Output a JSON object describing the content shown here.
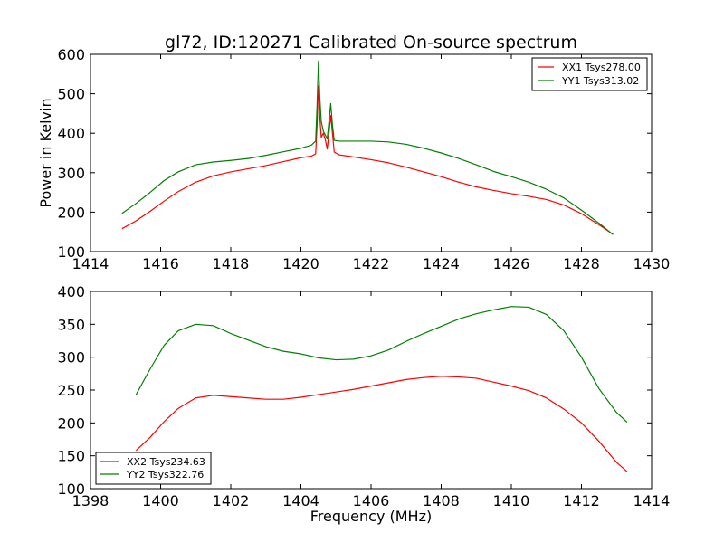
{
  "chart_data": [
    {
      "type": "line",
      "title": "gl72, ID:120271 Calibrated On-source spectrum",
      "xlabel": "",
      "ylabel": "Power in Kelvin",
      "xlim": [
        1414,
        1430
      ],
      "ylim": [
        100,
        600
      ],
      "xticks": [
        1414,
        1416,
        1418,
        1420,
        1422,
        1424,
        1426,
        1428,
        1430
      ],
      "yticks": [
        100,
        200,
        300,
        400,
        500,
        600
      ],
      "legend_position": "upper right",
      "series": [
        {
          "name": "XX1 Tsys278.00",
          "color": "#ff0000",
          "points": [
            [
              1414.9,
              158
            ],
            [
              1415.3,
              178
            ],
            [
              1415.7,
              202
            ],
            [
              1416.1,
              228
            ],
            [
              1416.5,
              252
            ],
            [
              1417.0,
              276
            ],
            [
              1417.5,
              292
            ],
            [
              1418.0,
              302
            ],
            [
              1418.5,
              310
            ],
            [
              1419.0,
              318
            ],
            [
              1419.5,
              328
            ],
            [
              1420.0,
              338
            ],
            [
              1420.3,
              342
            ],
            [
              1420.42,
              348
            ],
            [
              1420.46,
              420
            ],
            [
              1420.5,
              520
            ],
            [
              1420.54,
              440
            ],
            [
              1420.58,
              390
            ],
            [
              1420.64,
              400
            ],
            [
              1420.7,
              382
            ],
            [
              1420.75,
              360
            ],
            [
              1420.8,
              400
            ],
            [
              1420.85,
              445
            ],
            [
              1420.9,
              400
            ],
            [
              1420.95,
              352
            ],
            [
              1421.1,
              345
            ],
            [
              1421.5,
              340
            ],
            [
              1422.0,
              333
            ],
            [
              1422.5,
              325
            ],
            [
              1423.0,
              314
            ],
            [
              1423.5,
              302
            ],
            [
              1424.0,
              290
            ],
            [
              1424.5,
              276
            ],
            [
              1425.0,
              264
            ],
            [
              1425.5,
              255
            ],
            [
              1426.0,
              247
            ],
            [
              1426.5,
              240
            ],
            [
              1427.0,
              232
            ],
            [
              1427.5,
              218
            ],
            [
              1428.0,
              196
            ],
            [
              1428.5,
              168
            ],
            [
              1428.9,
              144
            ]
          ]
        },
        {
          "name": "YY1 Tsys313.02",
          "color": "#008000",
          "points": [
            [
              1414.9,
              197
            ],
            [
              1415.3,
              222
            ],
            [
              1415.7,
              250
            ],
            [
              1416.1,
              280
            ],
            [
              1416.5,
              302
            ],
            [
              1417.0,
              320
            ],
            [
              1417.5,
              327
            ],
            [
              1418.0,
              331
            ],
            [
              1418.5,
              336
            ],
            [
              1419.0,
              344
            ],
            [
              1419.5,
              353
            ],
            [
              1420.0,
              362
            ],
            [
              1420.3,
              370
            ],
            [
              1420.42,
              380
            ],
            [
              1420.46,
              470
            ],
            [
              1420.5,
              583
            ],
            [
              1420.54,
              490
            ],
            [
              1420.58,
              430
            ],
            [
              1420.64,
              405
            ],
            [
              1420.7,
              395
            ],
            [
              1420.75,
              385
            ],
            [
              1420.8,
              430
            ],
            [
              1420.85,
              475
            ],
            [
              1420.9,
              420
            ],
            [
              1420.95,
              382
            ],
            [
              1421.1,
              380
            ],
            [
              1421.5,
              380
            ],
            [
              1422.0,
              380
            ],
            [
              1422.5,
              378
            ],
            [
              1423.0,
              372
            ],
            [
              1423.5,
              362
            ],
            [
              1424.0,
              350
            ],
            [
              1424.5,
              336
            ],
            [
              1425.0,
              320
            ],
            [
              1425.5,
              303
            ],
            [
              1426.0,
              290
            ],
            [
              1426.5,
              276
            ],
            [
              1427.0,
              258
            ],
            [
              1427.5,
              236
            ],
            [
              1428.0,
              205
            ],
            [
              1428.5,
              172
            ],
            [
              1428.9,
              143
            ]
          ]
        }
      ]
    },
    {
      "type": "line",
      "title": "",
      "xlabel": "Frequency (MHz)",
      "ylabel": "",
      "xlim": [
        1398,
        1414
      ],
      "ylim": [
        100,
        400
      ],
      "xticks": [
        1398,
        1400,
        1402,
        1404,
        1406,
        1408,
        1410,
        1412,
        1414
      ],
      "yticks": [
        100,
        150,
        200,
        250,
        300,
        350,
        400
      ],
      "legend_position": "lower left",
      "series": [
        {
          "name": "XX2 Tsys234.63",
          "color": "#ff0000",
          "points": [
            [
              1399.3,
              158
            ],
            [
              1399.7,
              178
            ],
            [
              1400.1,
              202
            ],
            [
              1400.5,
              222
            ],
            [
              1401.0,
              238
            ],
            [
              1401.5,
              242
            ],
            [
              1402.0,
              240
            ],
            [
              1402.5,
              238
            ],
            [
              1403.0,
              236
            ],
            [
              1403.5,
              236
            ],
            [
              1404.0,
              239
            ],
            [
              1404.5,
              243
            ],
            [
              1405.0,
              247
            ],
            [
              1405.5,
              251
            ],
            [
              1406.0,
              256
            ],
            [
              1406.5,
              261
            ],
            [
              1407.0,
              266
            ],
            [
              1407.5,
              269
            ],
            [
              1408.0,
              271
            ],
            [
              1408.5,
              270
            ],
            [
              1409.0,
              268
            ],
            [
              1409.5,
              262
            ],
            [
              1410.0,
              256
            ],
            [
              1410.5,
              249
            ],
            [
              1411.0,
              238
            ],
            [
              1411.5,
              221
            ],
            [
              1412.0,
              200
            ],
            [
              1412.5,
              172
            ],
            [
              1413.0,
              140
            ],
            [
              1413.3,
              126
            ]
          ]
        },
        {
          "name": "YY2 Tsys322.76",
          "color": "#008000",
          "points": [
            [
              1399.3,
              243
            ],
            [
              1399.7,
              282
            ],
            [
              1400.1,
              318
            ],
            [
              1400.5,
              340
            ],
            [
              1401.0,
              350
            ],
            [
              1401.5,
              348
            ],
            [
              1402.0,
              336
            ],
            [
              1402.5,
              326
            ],
            [
              1403.0,
              316
            ],
            [
              1403.5,
              309
            ],
            [
              1404.0,
              305
            ],
            [
              1404.5,
              299
            ],
            [
              1405.0,
              296
            ],
            [
              1405.5,
              297
            ],
            [
              1406.0,
              302
            ],
            [
              1406.5,
              311
            ],
            [
              1407.0,
              324
            ],
            [
              1407.5,
              336
            ],
            [
              1408.0,
              347
            ],
            [
              1408.5,
              358
            ],
            [
              1409.0,
              366
            ],
            [
              1409.5,
              372
            ],
            [
              1410.0,
              377
            ],
            [
              1410.5,
              376
            ],
            [
              1411.0,
              365
            ],
            [
              1411.5,
              340
            ],
            [
              1412.0,
              300
            ],
            [
              1412.5,
              252
            ],
            [
              1413.0,
              216
            ],
            [
              1413.3,
              201
            ]
          ]
        }
      ]
    }
  ]
}
